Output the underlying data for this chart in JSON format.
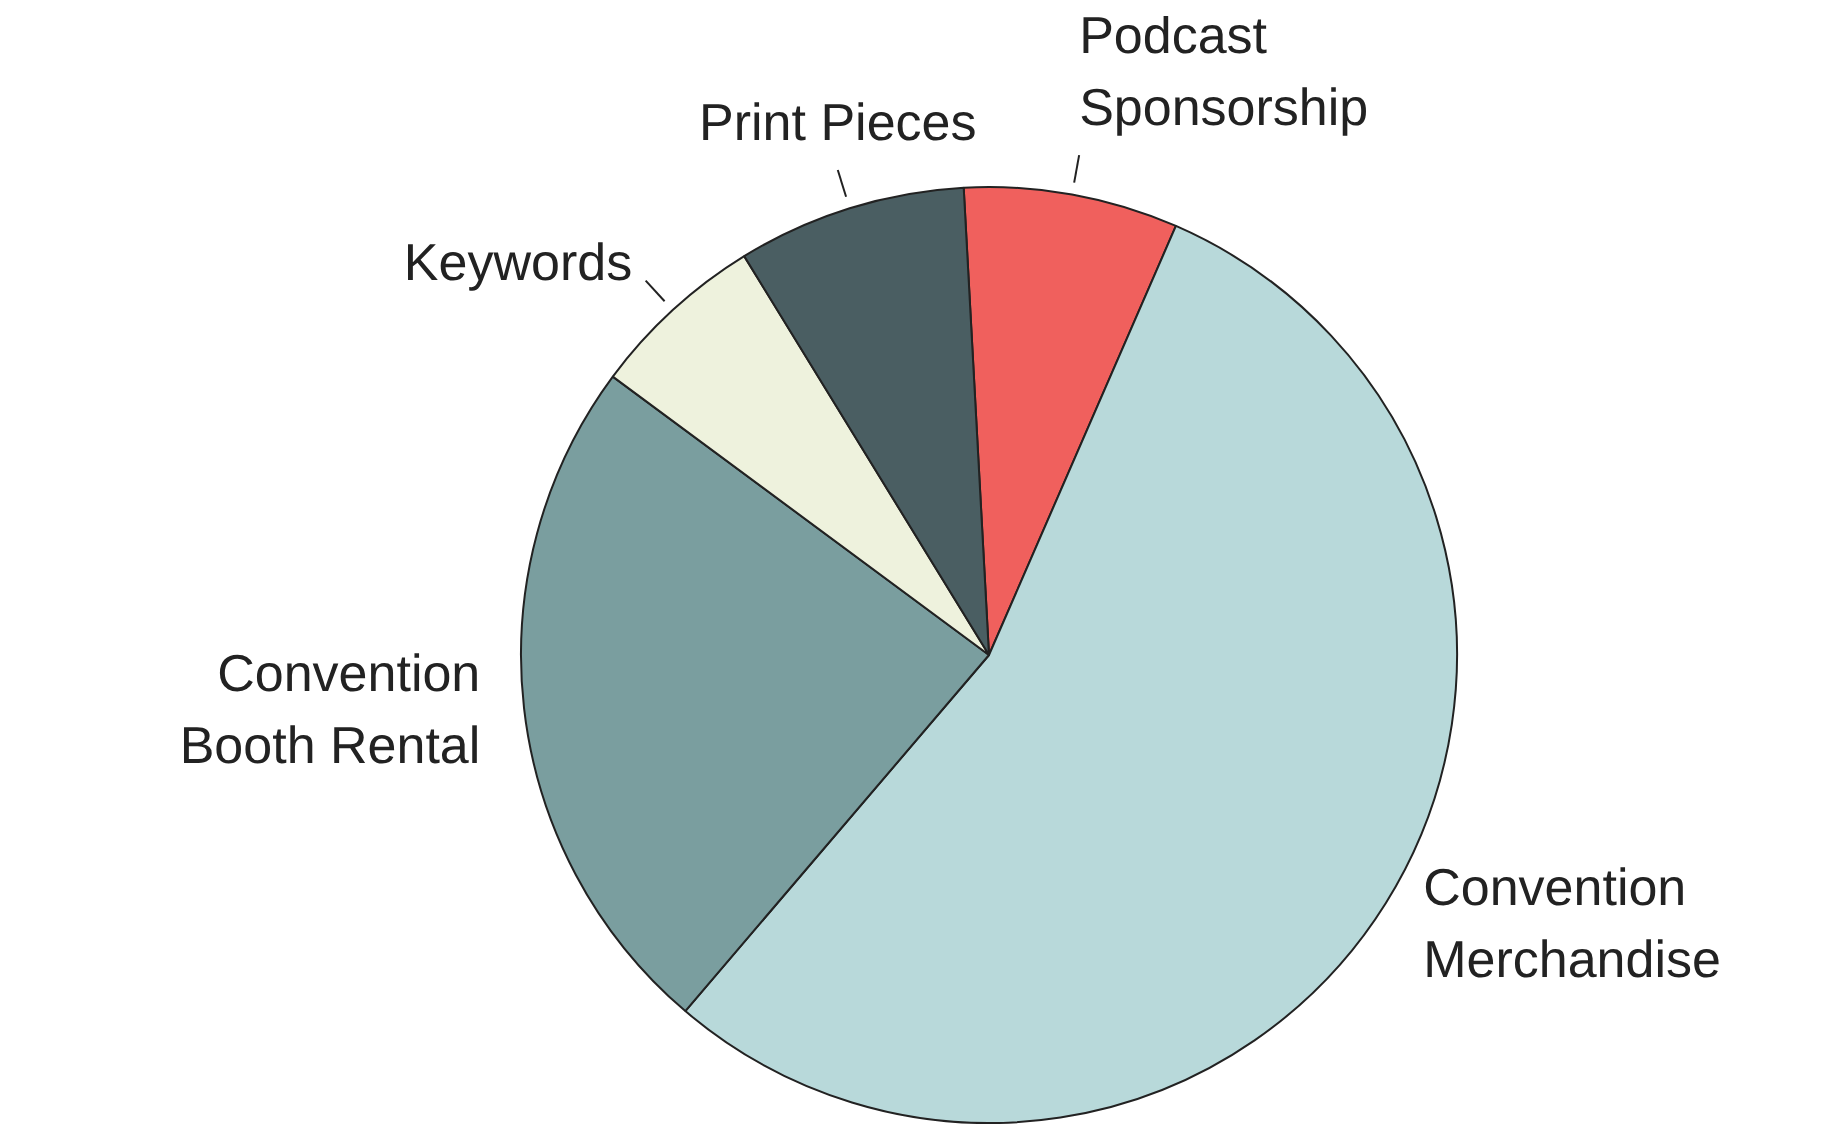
{
  "chart_data": {
    "type": "pie",
    "categories": [
      "Podcast Sponsorship",
      "Convention Merchandise",
      "Convention Booth Rental",
      "Keywords",
      "Print Pieces"
    ],
    "values": [
      7.4,
      54.7,
      23.9,
      6.1,
      7.9
    ],
    "colors": [
      "#f0605d",
      "#b8d9da",
      "#7a9e9f",
      "#eef2dd",
      "#4a5e62"
    ],
    "legend": false
  }
}
